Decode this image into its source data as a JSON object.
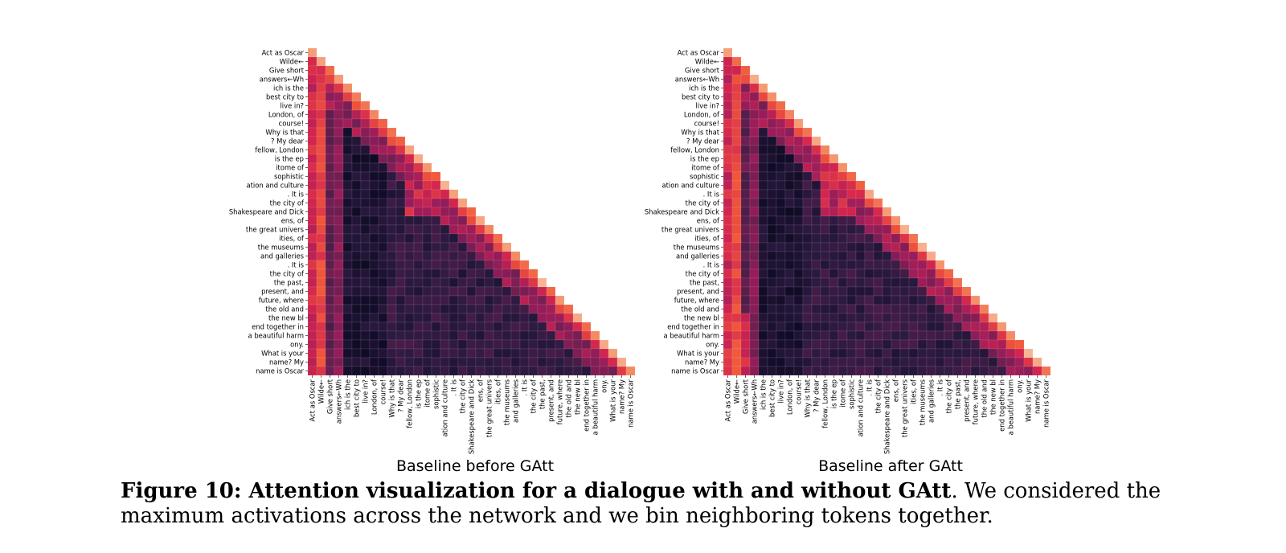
{
  "chart_data": [
    {
      "type": "heatmap",
      "subtitle": "Baseline before GAtt",
      "tokens": [
        "Act as Oscar",
        "Wilde←",
        "Give short",
        "answers←Wh",
        "ich is the",
        "best city to",
        "live in?",
        "London, of",
        "course!",
        "Why is that",
        "? My dear",
        "fellow, London",
        "is the ep",
        "itome of",
        "sophistic",
        "ation and culture",
        ". It is",
        "the city of",
        "Shakespeare and Dick",
        "ens, of",
        "the great univers",
        "ities, of",
        "the museums",
        "and galleries",
        ". It is",
        "the city of",
        "the past,",
        "present, and",
        "future, where",
        "the old and",
        "the new bl",
        "end together in",
        "a beautiful harm",
        "ony.",
        "What is your",
        "name? My",
        "name is Oscar"
      ],
      "color_scale": [
        "#03051a",
        "#2d1a41",
        "#5f1e4d",
        "#9a1d5a",
        "#d4254e",
        "#f0573a",
        "#f59b73",
        "#fad6c0"
      ],
      "mask": "upper-triangle"
    },
    {
      "type": "heatmap",
      "subtitle": "Baseline after GAtt",
      "tokens": [
        "Act as Oscar",
        "Wilde←",
        "Give short",
        "answers←Wh",
        "ich is the",
        "best city to",
        "live in?",
        "London, of",
        "course!",
        "Why is that",
        "? My dear",
        "fellow, London",
        "is the ep",
        "itome of",
        "sophistic",
        "ation and culture",
        ". It is",
        "the city of",
        "Shakespeare and Dick",
        "ens, of",
        "the great univers",
        "ities, of",
        "the museums",
        "and galleries",
        ". It is",
        "the city of",
        "the past,",
        "present, and",
        "future, where",
        "the old and",
        "the new bl",
        "end together in",
        "a beautiful harm",
        "ony.",
        "What is your",
        "name? My",
        "name is Oscar"
      ],
      "color_scale": [
        "#03051a",
        "#2d1a41",
        "#5f1e4d",
        "#9a1d5a",
        "#d4254e",
        "#f0573a",
        "#f59b73",
        "#fad6c0"
      ],
      "mask": "upper-triangle"
    }
  ],
  "caption": {
    "label": "Figure 10: Attention visualization for a dialogue with and without GAtt",
    "text": ". We considered the maximum activations across the network and we bin neighboring tokens together."
  }
}
